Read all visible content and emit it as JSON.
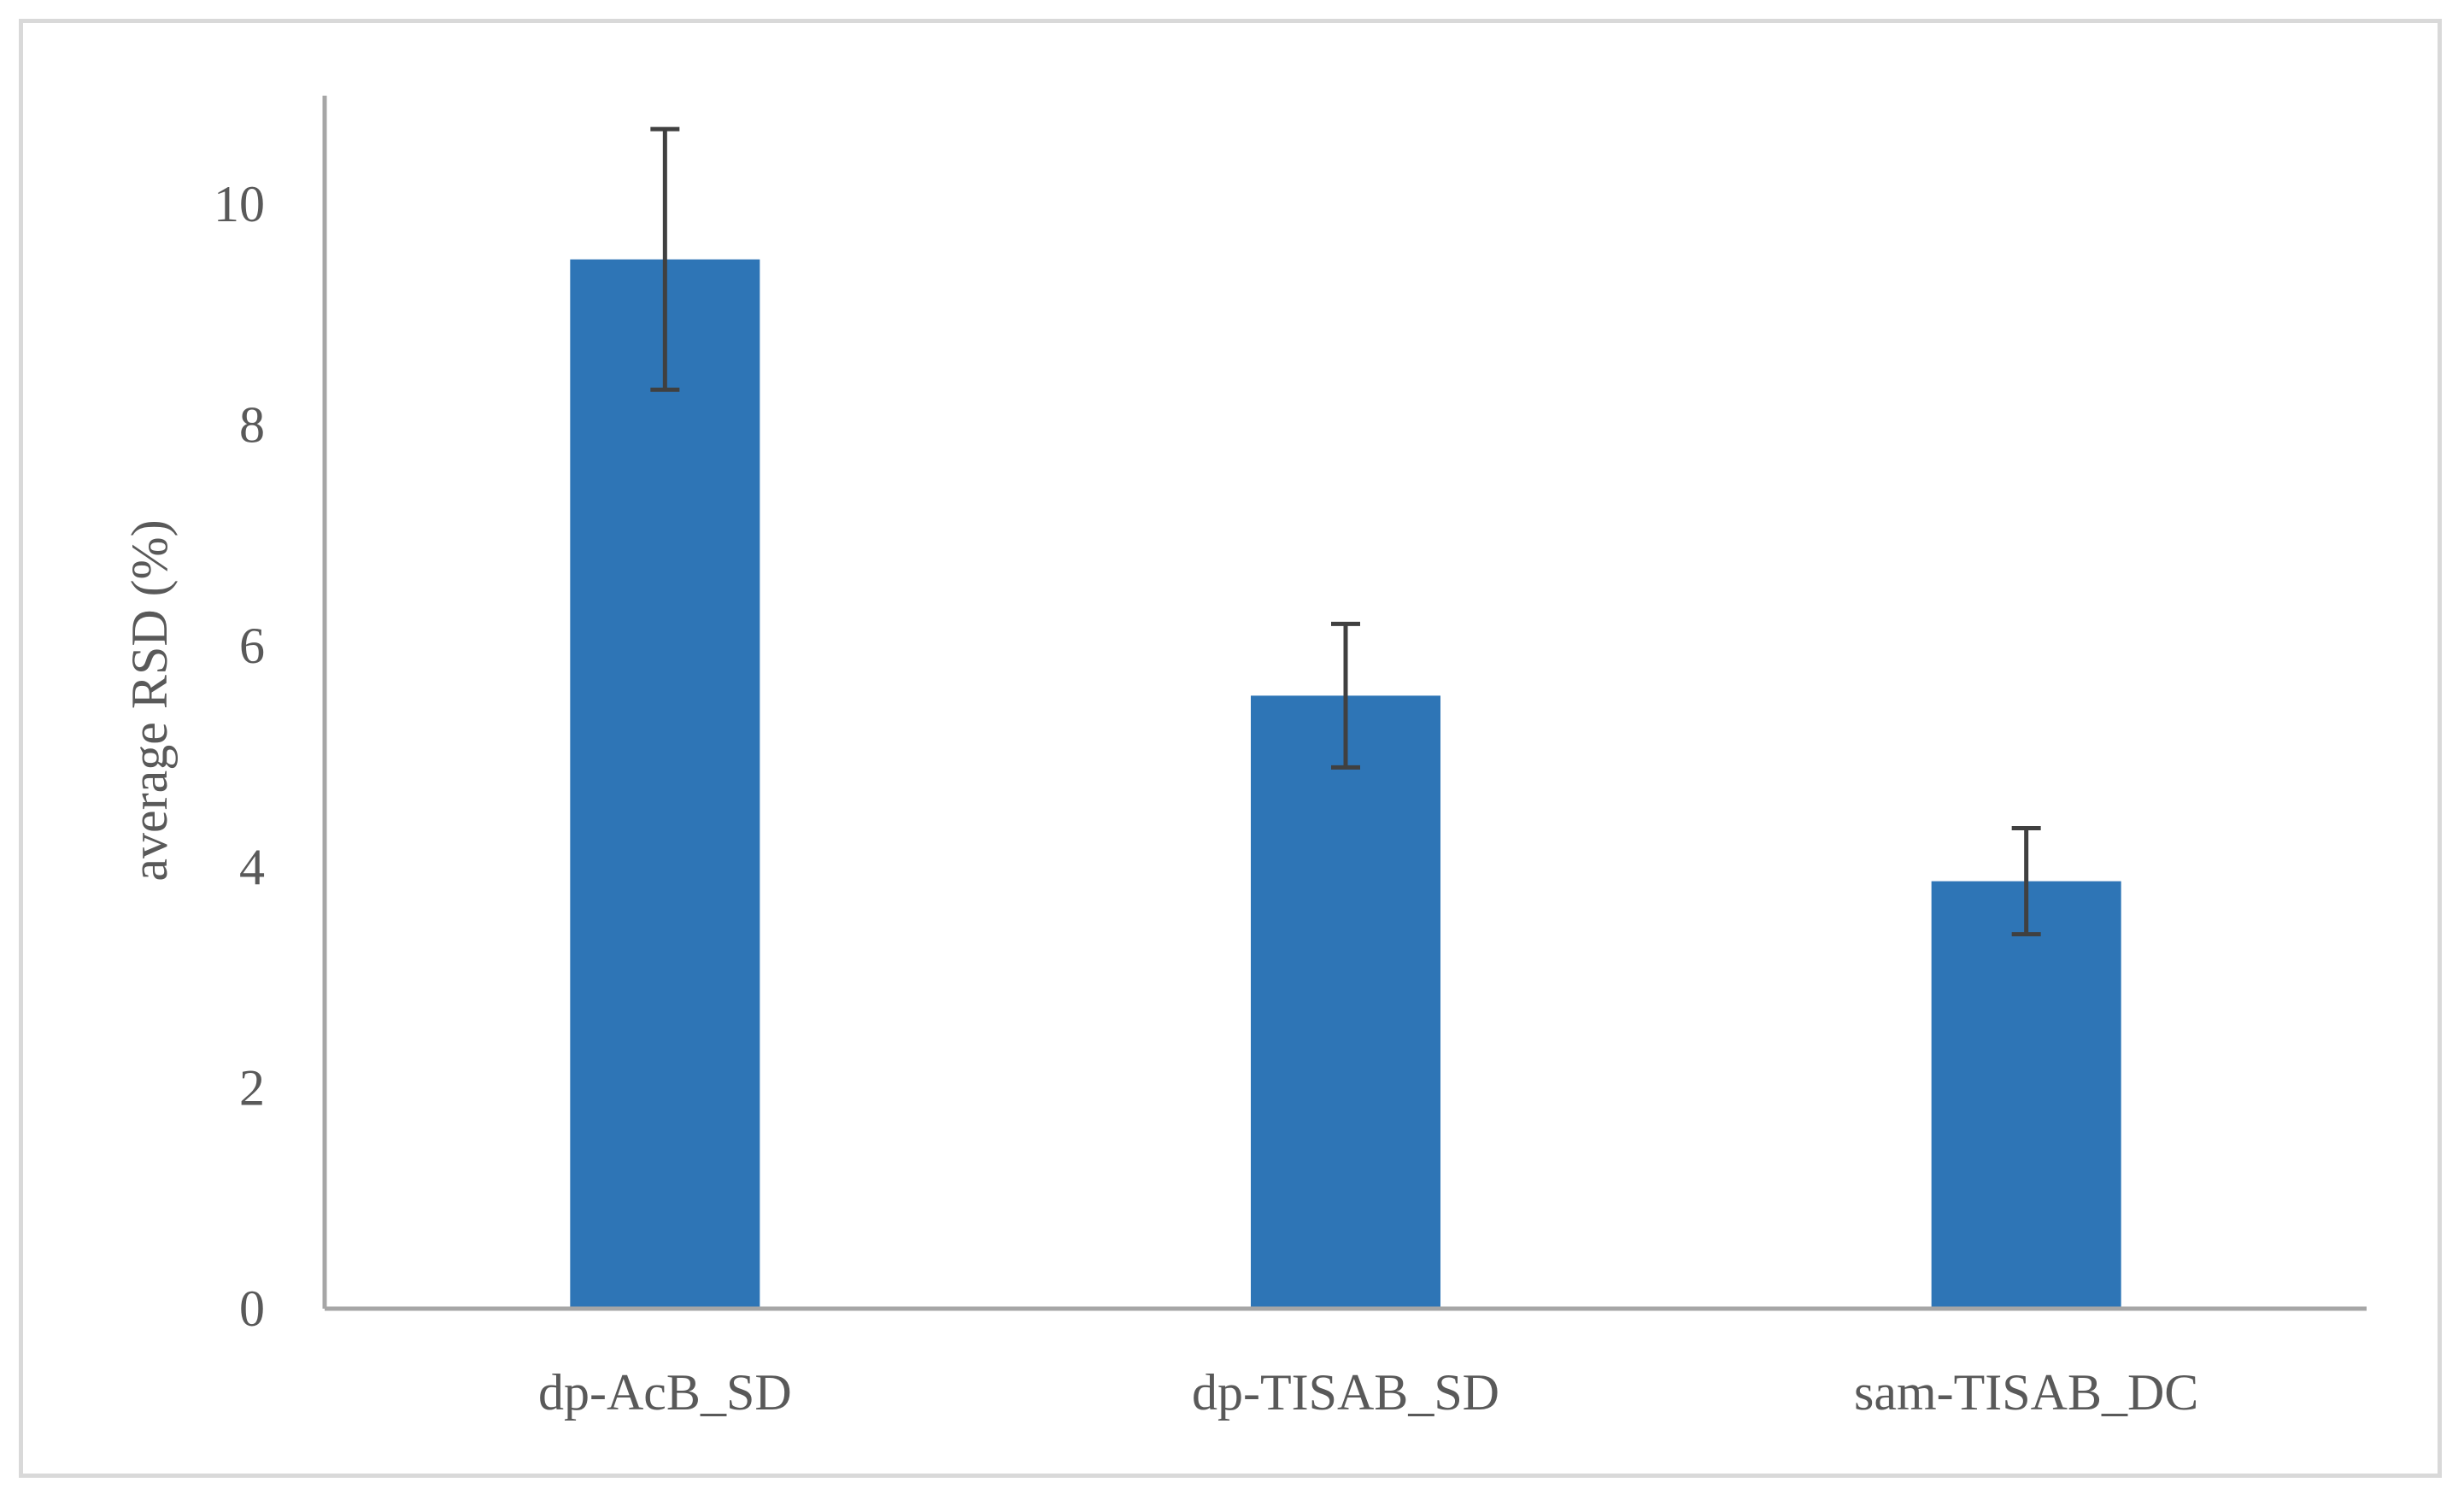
{
  "chart_data": {
    "type": "bar",
    "title": "",
    "xlabel": "",
    "ylabel": "average RSD (%)",
    "categories": [
      "dp-AcB_SD",
      "dp-TISAB_SD",
      "sam-TISAB_DC"
    ],
    "series": [
      {
        "values": [
          9.5,
          5.55,
          3.87
        ],
        "error": [
          1.18,
          0.65,
          0.48
        ],
        "color": "#2e75b6"
      }
    ],
    "ylim": [
      0,
      11
    ],
    "yticks": [
      0,
      2,
      4,
      6,
      8,
      10
    ],
    "grid": false,
    "legend": "none",
    "colors": {
      "bar": "#2e75b6",
      "error_bar": "#404040",
      "axis": "#a6a6a6",
      "text": "#595959",
      "frame": "#d9d9d9"
    }
  }
}
